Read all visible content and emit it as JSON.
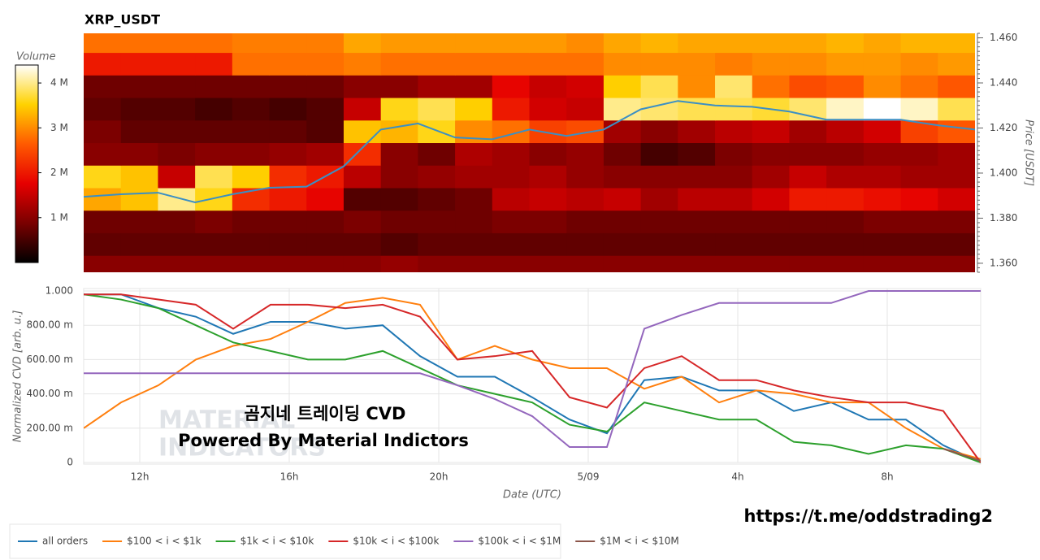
{
  "chart_data": [
    {
      "type": "heatmap",
      "title": "XRP_USDT",
      "colorbar_label": "Volume",
      "ylabel": "Price [USDT]",
      "colorscale": [
        "#000000",
        "#7a0000",
        "#e60000",
        "#ff5a00",
        "#ffd200",
        "#ffffff"
      ],
      "clim": [
        0,
        4400000
      ],
      "colorbar_ticks": [
        {
          "value": 1000000,
          "label": "1 M"
        },
        {
          "value": 2000000,
          "label": "2 M"
        },
        {
          "value": 3000000,
          "label": "3 M"
        },
        {
          "value": 4000000,
          "label": "4 M"
        }
      ],
      "xlim": [
        10.5,
        34.5
      ],
      "ylim": [
        1.356,
        1.462
      ],
      "yticks": [
        {
          "value": 1.36,
          "label": "1.360"
        },
        {
          "value": 1.38,
          "label": "1.380"
        },
        {
          "value": 1.4,
          "label": "1.400"
        },
        {
          "value": 1.42,
          "label": "1.420"
        },
        {
          "value": 1.44,
          "label": "1.440"
        },
        {
          "value": 1.46,
          "label": "1.460"
        }
      ],
      "x_bins": [
        10.5,
        11.5,
        12.5,
        13.5,
        14.5,
        15.5,
        16.5,
        17.5,
        18.5,
        19.5,
        20.5,
        21.5,
        22.5,
        23.5,
        24.5,
        25.5,
        26.5,
        27.5,
        28.5,
        29.5,
        30.5,
        31.5,
        32.5,
        33.5,
        34.5
      ],
      "y_bins": [
        1.3535,
        1.3635,
        1.3735,
        1.3835,
        1.3935,
        1.4035,
        1.4135,
        1.4235,
        1.4335,
        1.4435,
        1.4535,
        1.4635
      ],
      "z": [
        [
          1000000,
          1000000,
          1000000,
          1000000,
          1000000,
          1000000,
          1000000,
          1000000,
          1100000,
          1000000,
          1000000,
          1000000,
          1000000,
          1000000,
          1000000,
          1000000,
          1000000,
          1000000,
          1000000,
          1000000,
          1000000,
          1000000,
          1000000,
          1000000
        ],
        [
          700000,
          700000,
          700000,
          700000,
          700000,
          700000,
          700000,
          700000,
          600000,
          700000,
          700000,
          700000,
          700000,
          700000,
          700000,
          700000,
          700000,
          700000,
          700000,
          700000,
          700000,
          700000,
          700000,
          700000
        ],
        [
          800000,
          800000,
          800000,
          900000,
          800000,
          800000,
          800000,
          900000,
          800000,
          800000,
          800000,
          900000,
          900000,
          800000,
          800000,
          800000,
          800000,
          800000,
          800000,
          800000,
          800000,
          900000,
          900000,
          900000
        ],
        [
          3200000,
          3400000,
          4000000,
          3600000,
          2200000,
          2000000,
          1800000,
          600000,
          600000,
          700000,
          800000,
          1400000,
          1500000,
          1400000,
          1500000,
          1200000,
          1400000,
          1400000,
          1600000,
          2000000,
          2000000,
          1900000,
          1800000,
          1600000
        ],
        [
          3600000,
          3400000,
          1500000,
          3800000,
          3500000,
          2200000,
          2000000,
          1400000,
          1000000,
          1100000,
          1200000,
          1200000,
          1300000,
          1100000,
          1000000,
          1000000,
          1000000,
          1000000,
          1200000,
          1500000,
          1300000,
          1300000,
          1200000,
          1200000
        ],
        [
          1000000,
          1000000,
          900000,
          1000000,
          1000000,
          1100000,
          1200000,
          2200000,
          1000000,
          800000,
          1300000,
          1200000,
          1000000,
          1100000,
          800000,
          500000,
          600000,
          900000,
          1000000,
          1000000,
          1000000,
          1100000,
          1100000,
          1200000
        ],
        [
          900000,
          700000,
          700000,
          700000,
          700000,
          700000,
          600000,
          3400000,
          3300000,
          3600000,
          3000000,
          2800000,
          2400000,
          2500000,
          1200000,
          1000000,
          1200000,
          1400000,
          1500000,
          1200000,
          1400000,
          1600000,
          2400000,
          2600000
        ],
        [
          700000,
          600000,
          600000,
          500000,
          600000,
          500000,
          600000,
          1500000,
          3600000,
          3800000,
          3500000,
          2000000,
          1600000,
          1500000,
          4000000,
          3900000,
          3800000,
          3800000,
          3700000,
          3900000,
          4200000,
          4400000,
          4200000,
          3800000
        ],
        [
          800000,
          800000,
          800000,
          800000,
          800000,
          800000,
          800000,
          1000000,
          1000000,
          1200000,
          1200000,
          1800000,
          1500000,
          1600000,
          3500000,
          3800000,
          3000000,
          3900000,
          2800000,
          2500000,
          2600000,
          3000000,
          2800000,
          2600000
        ],
        [
          2000000,
          2000000,
          2000000,
          2000000,
          2800000,
          2800000,
          2800000,
          2900000,
          2800000,
          2800000,
          2800000,
          2800000,
          2800000,
          2800000,
          3000000,
          3000000,
          3000000,
          2900000,
          3000000,
          3000000,
          3100000,
          3100000,
          3000000,
          3100000
        ],
        [
          2800000,
          2800000,
          2800000,
          2800000,
          2900000,
          2900000,
          2900000,
          3200000,
          3100000,
          3100000,
          3100000,
          3100000,
          3100000,
          3000000,
          3200000,
          3300000,
          3200000,
          3200000,
          3200000,
          3200000,
          3300000,
          3200000,
          3300000,
          3300000
        ]
      ],
      "series": [
        {
          "color": "#3b8fc4",
          "values": [
            1.3895,
            1.3906,
            1.3913,
            1.387,
            1.3906,
            1.3935,
            1.394,
            1.403,
            1.4193,
            1.422,
            1.4158,
            1.415,
            1.4193,
            1.4165,
            1.4193,
            1.4283,
            1.432,
            1.43,
            1.4294,
            1.4273,
            1.4237,
            1.4237,
            1.4237,
            1.4212,
            1.4193
          ]
        }
      ]
    },
    {
      "type": "line",
      "xlabel": "Date (UTC)",
      "ylabel": "Normalized CVD [arb. u.]",
      "xlim": [
        10.5,
        34.5
      ],
      "ylim": [
        0,
        1
      ],
      "xticks": [
        {
          "value": 12,
          "label": "12h"
        },
        {
          "value": 16,
          "label": "16h"
        },
        {
          "value": 20,
          "label": "20h"
        },
        {
          "value": 24,
          "label": "5/09"
        },
        {
          "value": 28,
          "label": "4h"
        },
        {
          "value": 32,
          "label": "8h"
        }
      ],
      "yticks": [
        0,
        {
          "value": 0.2,
          "label": "200.00 m"
        },
        {
          "value": 0.4,
          "label": "400.00 m"
        },
        {
          "value": 0.6,
          "label": "600.00 m"
        },
        {
          "value": 0.8,
          "label": "800.00 m"
        },
        {
          "value": 1,
          "label": "1.000"
        }
      ],
      "grid": true,
      "legend": "bottom",
      "x": [
        10.5,
        11.5,
        12.5,
        13.5,
        14.5,
        15.5,
        16.5,
        17.5,
        18.5,
        19.5,
        20.5,
        21.5,
        22.5,
        23.5,
        24.5,
        25.5,
        26.5,
        27.5,
        28.5,
        29.5,
        30.5,
        31.5,
        32.5,
        33.5,
        34.5
      ],
      "series": [
        {
          "name": "all orders",
          "color": "#1f77b4",
          "values": [
            0.98,
            0.98,
            0.9,
            0.85,
            0.75,
            0.82,
            0.82,
            0.78,
            0.8,
            0.62,
            0.5,
            0.5,
            0.38,
            0.25,
            0.17,
            0.48,
            0.5,
            0.42,
            0.42,
            0.3,
            0.35,
            0.25,
            0.25,
            0.1,
            0
          ]
        },
        {
          "name": "$100 < i < $1k",
          "color": "#ff7f0e",
          "values": [
            0.2,
            0.35,
            0.45,
            0.6,
            0.68,
            0.72,
            0.82,
            0.93,
            0.96,
            0.92,
            0.6,
            0.68,
            0.6,
            0.55,
            0.55,
            0.43,
            0.5,
            0.35,
            0.42,
            0.4,
            0.35,
            0.35,
            0.2,
            0.08,
            0.02
          ]
        },
        {
          "name": "$1k < i < $10k",
          "color": "#2ca02c",
          "values": [
            0.98,
            0.95,
            0.9,
            0.8,
            0.7,
            0.65,
            0.6,
            0.6,
            0.65,
            0.55,
            0.45,
            0.4,
            0.35,
            0.22,
            0.18,
            0.35,
            0.3,
            0.25,
            0.25,
            0.12,
            0.1,
            0.05,
            0.1,
            0.08,
            0
          ]
        },
        {
          "name": "$10k < i < $100k",
          "color": "#d62728",
          "values": [
            0.98,
            0.98,
            0.95,
            0.92,
            0.78,
            0.92,
            0.92,
            0.9,
            0.92,
            0.85,
            0.6,
            0.62,
            0.65,
            0.38,
            0.32,
            0.55,
            0.62,
            0.48,
            0.48,
            0.42,
            0.38,
            0.35,
            0.35,
            0.3,
            0
          ]
        },
        {
          "name": "$100k < i < $1M",
          "color": "#9467bd",
          "values": [
            0.52,
            0.52,
            0.52,
            0.52,
            0.52,
            0.52,
            0.52,
            0.52,
            0.52,
            0.52,
            0.45,
            0.37,
            0.27,
            0.09,
            0.09,
            0.78,
            0.86,
            0.93,
            0.93,
            0.93,
            0.93,
            1,
            1,
            1,
            1
          ]
        },
        {
          "name": "$1M < i < $10M",
          "color": "#8c564b",
          "values": [
            null,
            null,
            null,
            null,
            null,
            null,
            null,
            null,
            null,
            null,
            null,
            null,
            null,
            null,
            null,
            null,
            null,
            null,
            null,
            null,
            null,
            null,
            null,
            0.08,
            0.01
          ]
        }
      ],
      "annotations": [
        "곰지네 트레이딩 CVD",
        "Powered By Material Indictors"
      ]
    }
  ],
  "watermark": [
    "MATERIAL",
    "INDICATORS"
  ],
  "credit": "https://t.me/oddstrading2"
}
